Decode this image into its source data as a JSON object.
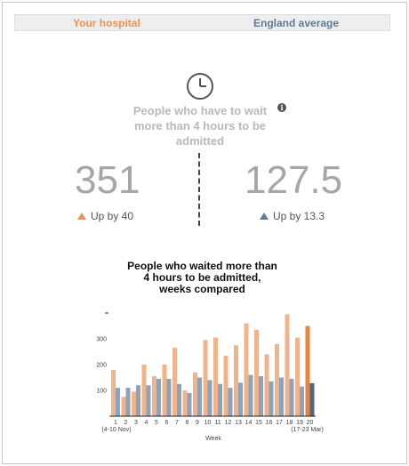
{
  "tabs": {
    "hospital_label": "Your hospital",
    "england_label": "England average"
  },
  "icons": {
    "clock": "clock-icon",
    "info": "info-icon"
  },
  "headline": {
    "line1": "People who have to wait",
    "line2": "more than 4 hours to be",
    "line3": "admitted",
    "info_glyph": "i"
  },
  "hospital": {
    "value": "351",
    "change": "Up by 40",
    "color": "#e8955a"
  },
  "england": {
    "value": "127.5",
    "change": "Up by 13.3",
    "color": "#5f7a96"
  },
  "chart_title": {
    "line1": "People who waited more than",
    "line2": "4 hours to be admitted,",
    "line3": "weeks compared"
  },
  "chart_data": {
    "type": "bar",
    "title": "People who waited more than 4 hours to be admitted, weeks compared",
    "xlabel": "Week",
    "ylabel": "",
    "ylim": [
      0,
      400
    ],
    "yticks": [
      100,
      200,
      300
    ],
    "categories": [
      "1",
      "2",
      "3",
      "4",
      "5",
      "6",
      "7",
      "8",
      "9",
      "10",
      "11",
      "12",
      "13",
      "14",
      "15",
      "16",
      "17",
      "18",
      "19",
      "20"
    ],
    "first_sublabel": "(4-10 Nov)",
    "last_sublabel": "(17-23 Mar)",
    "series": [
      {
        "values": [
          180,
          75,
          95,
          200,
          155,
          200,
          265,
          100,
          170,
          295,
          305,
          235,
          275,
          360,
          335,
          240,
          280,
          395,
          305,
          350
        ]
      },
      {
        "values": [
          110,
          110,
          120,
          120,
          145,
          145,
          125,
          90,
          150,
          140,
          125,
          110,
          130,
          160,
          155,
          135,
          150,
          145,
          115,
          128
        ]
      }
    ]
  }
}
